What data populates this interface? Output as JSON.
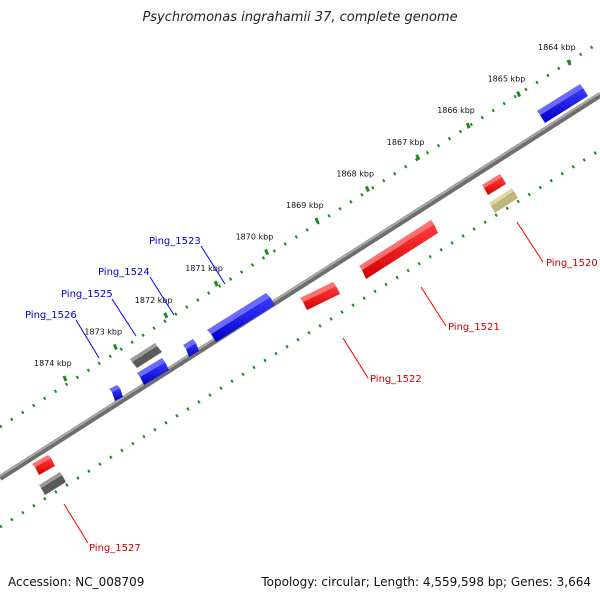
{
  "title": "Psychromonas ingrahamii 37, complete genome",
  "footer": {
    "accession": "Accession: NC_008709",
    "topology": "Topology: circular; Length: 4,559,598 bp; Genes: 3,664"
  },
  "ticks": [
    {
      "label": "1864 kbp",
      "kbp": 1864
    },
    {
      "label": "1865 kbp",
      "kbp": 1865
    },
    {
      "label": "1866 kbp",
      "kbp": 1866
    },
    {
      "label": "1867 kbp",
      "kbp": 1867
    },
    {
      "label": "1868 kbp",
      "kbp": 1868
    },
    {
      "label": "1869 kbp",
      "kbp": 1869
    },
    {
      "label": "1870 kbp",
      "kbp": 1870
    },
    {
      "label": "1871 kbp",
      "kbp": 1871
    },
    {
      "label": "1872 kbp",
      "kbp": 1872
    },
    {
      "label": "1873 kbp",
      "kbp": 1873
    },
    {
      "label": "1874 kbp",
      "kbp": 1874
    }
  ],
  "genes": [
    {
      "name": "Ping_1520",
      "strand": "minus",
      "color": "#ff0000"
    },
    {
      "name": "Ping_1521",
      "strand": "minus",
      "color": "#ff0000"
    },
    {
      "name": "Ping_1522",
      "strand": "minus",
      "color": "#ff0000"
    },
    {
      "name": "Ping_1523",
      "strand": "plus",
      "color": "#0000ff"
    },
    {
      "name": "Ping_1524",
      "strand": "plus",
      "color": "#0000ff"
    },
    {
      "name": "Ping_1525",
      "strand": "plus",
      "color": "#0000ff"
    },
    {
      "name": "Ping_1526",
      "strand": "plus",
      "color": "#0000ff"
    },
    {
      "name": "Ping_1527",
      "strand": "minus",
      "color": "#ff0000"
    }
  ],
  "colors": {
    "backbone": "#8a8a8a",
    "plus_gene": "#0000ff",
    "minus_gene": "#ff0000",
    "unlabeled_gray": "#707070",
    "unlabeled_khaki": "#c8c28a",
    "ruler_dots": "#1a8a1a"
  }
}
